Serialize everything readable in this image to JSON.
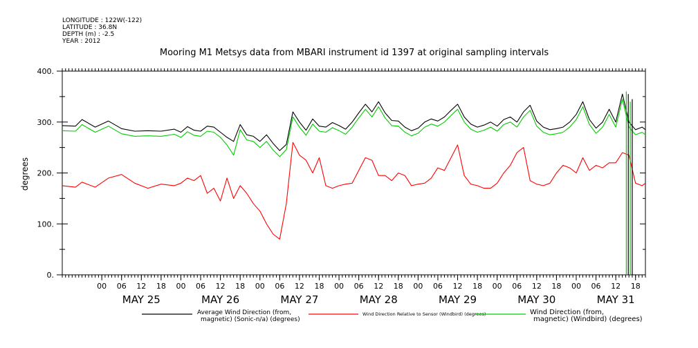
{
  "header": {
    "longitude": "LONGITUDE : 122W(-122)",
    "latitude": "LATITUDE : 36.8N",
    "depth": "DEPTH (m) : -2.5",
    "year": "YEAR : 2012"
  },
  "chart_data": {
    "type": "line",
    "title": "Mooring M1 Metsys data from MBARI instrument id 1397 at original sampling intervals",
    "ylabel": "degrees",
    "ylim": [
      0,
      400
    ],
    "y_ticks": [
      "0.",
      "100.",
      "200.",
      "300.",
      "400."
    ],
    "x_unit": "hours since May 24 12:00",
    "xlim": [
      0,
      177
    ],
    "x_hour_ticks": [
      {
        "x": 12,
        "label": "00"
      },
      {
        "x": 18,
        "label": "06"
      },
      {
        "x": 24,
        "label": "12"
      },
      {
        "x": 30,
        "label": "18"
      },
      {
        "x": 36,
        "label": "00"
      },
      {
        "x": 42,
        "label": "06"
      },
      {
        "x": 48,
        "label": "12"
      },
      {
        "x": 54,
        "label": "18"
      },
      {
        "x": 60,
        "label": "00"
      },
      {
        "x": 66,
        "label": "06"
      },
      {
        "x": 72,
        "label": "12"
      },
      {
        "x": 78,
        "label": "18"
      },
      {
        "x": 84,
        "label": "00"
      },
      {
        "x": 90,
        "label": "06"
      },
      {
        "x": 96,
        "label": "12"
      },
      {
        "x": 102,
        "label": "18"
      },
      {
        "x": 108,
        "label": "00"
      },
      {
        "x": 114,
        "label": "06"
      },
      {
        "x": 120,
        "label": "12"
      },
      {
        "x": 126,
        "label": "18"
      },
      {
        "x": 132,
        "label": "00"
      },
      {
        "x": 138,
        "label": "06"
      },
      {
        "x": 144,
        "label": "12"
      },
      {
        "x": 150,
        "label": "18"
      },
      {
        "x": 156,
        "label": "00"
      },
      {
        "x": 162,
        "label": "06"
      },
      {
        "x": 168,
        "label": "12"
      },
      {
        "x": 174,
        "label": "18"
      }
    ],
    "x_day_labels": [
      {
        "x": 24,
        "label": "MAY 25"
      },
      {
        "x": 48,
        "label": "MAY 26"
      },
      {
        "x": 72,
        "label": "MAY 27"
      },
      {
        "x": 96,
        "label": "MAY 28"
      },
      {
        "x": 120,
        "label": "MAY 29"
      },
      {
        "x": 144,
        "label": "MAY 30"
      },
      {
        "x": 168,
        "label": "MAY 31"
      }
    ],
    "series": [
      {
        "name": "Average Wind Direction (from, magnetic) (Sonic-n/a) (degrees)",
        "color": "#000000",
        "x": [
          0,
          4,
          6,
          10,
          14,
          18,
          22,
          26,
          30,
          34,
          36,
          38,
          40,
          42,
          44,
          46,
          48,
          50,
          52,
          54,
          56,
          58,
          60,
          62,
          64,
          66,
          68,
          70,
          72,
          74,
          76,
          78,
          80,
          82,
          84,
          86,
          88,
          90,
          92,
          94,
          96,
          98,
          100,
          102,
          104,
          106,
          108,
          110,
          112,
          114,
          116,
          118,
          120,
          122,
          124,
          126,
          128,
          130,
          132,
          134,
          136,
          138,
          140,
          142,
          144,
          146,
          148,
          150,
          152,
          154,
          156,
          158,
          160,
          162,
          164,
          166,
          168,
          170,
          172,
          174,
          176,
          177
        ],
        "y": [
          293,
          292,
          305,
          290,
          302,
          287,
          282,
          283,
          282,
          286,
          280,
          291,
          284,
          282,
          292,
          290,
          280,
          270,
          262,
          295,
          275,
          272,
          262,
          275,
          258,
          244,
          256,
          320,
          300,
          284,
          306,
          292,
          290,
          299,
          293,
          286,
          300,
          318,
          335,
          320,
          340,
          318,
          303,
          302,
          290,
          283,
          288,
          300,
          306,
          302,
          310,
          323,
          335,
          310,
          296,
          290,
          294,
          300,
          292,
          305,
          310,
          300,
          320,
          333,
          302,
          290,
          285,
          287,
          290,
          300,
          315,
          340,
          305,
          288,
          300,
          325,
          300,
          355,
          300,
          285,
          290,
          285
        ]
      },
      {
        "name": "Wind Direction Relative to Sensor (Windbird) (degrees)",
        "color": "#ff0000",
        "x": [
          0,
          4,
          6,
          10,
          14,
          18,
          22,
          26,
          30,
          34,
          36,
          38,
          40,
          42,
          44,
          46,
          48,
          50,
          52,
          54,
          56,
          58,
          60,
          62,
          64,
          66,
          68,
          70,
          72,
          74,
          76,
          78,
          80,
          82,
          84,
          86,
          88,
          90,
          92,
          94,
          96,
          98,
          100,
          102,
          104,
          106,
          108,
          110,
          112,
          114,
          116,
          118,
          120,
          122,
          124,
          126,
          128,
          130,
          132,
          134,
          136,
          138,
          140,
          142,
          144,
          146,
          148,
          150,
          152,
          154,
          156,
          158,
          160,
          162,
          164,
          166,
          168,
          170,
          172,
          174,
          176,
          177
        ],
        "y": [
          175,
          172,
          182,
          172,
          190,
          197,
          180,
          170,
          178,
          175,
          180,
          190,
          185,
          195,
          160,
          170,
          145,
          190,
          150,
          175,
          160,
          140,
          125,
          100,
          80,
          70,
          140,
          260,
          235,
          225,
          200,
          230,
          175,
          170,
          175,
          178,
          180,
          205,
          230,
          225,
          195,
          195,
          185,
          200,
          195,
          175,
          178,
          180,
          190,
          210,
          205,
          230,
          255,
          195,
          178,
          175,
          170,
          170,
          180,
          200,
          215,
          240,
          250,
          185,
          178,
          175,
          180,
          200,
          215,
          210,
          200,
          230,
          205,
          215,
          210,
          220,
          220,
          240,
          235,
          180,
          175,
          180
        ]
      },
      {
        "name": "Wind Direction (from, magnetic) (Windbird) (degrees)",
        "color": "#00cc00",
        "x": [
          0,
          4,
          6,
          10,
          14,
          18,
          22,
          26,
          30,
          34,
          36,
          38,
          40,
          42,
          44,
          46,
          48,
          50,
          52,
          54,
          56,
          58,
          60,
          62,
          64,
          66,
          68,
          70,
          72,
          74,
          76,
          78,
          80,
          82,
          84,
          86,
          88,
          90,
          92,
          94,
          96,
          98,
          100,
          102,
          104,
          106,
          108,
          110,
          112,
          114,
          116,
          118,
          120,
          122,
          124,
          126,
          128,
          130,
          132,
          134,
          136,
          138,
          140,
          142,
          144,
          146,
          148,
          150,
          152,
          154,
          156,
          158,
          160,
          162,
          164,
          166,
          168,
          170,
          172,
          174,
          176,
          177
        ],
        "y": [
          283,
          282,
          295,
          280,
          292,
          277,
          272,
          273,
          272,
          276,
          270,
          281,
          274,
          272,
          282,
          280,
          270,
          255,
          235,
          285,
          265,
          262,
          250,
          262,
          245,
          232,
          246,
          310,
          290,
          274,
          296,
          282,
          280,
          289,
          283,
          276,
          290,
          308,
          325,
          310,
          330,
          308,
          293,
          292,
          280,
          273,
          278,
          290,
          296,
          292,
          300,
          313,
          325,
          300,
          286,
          280,
          284,
          290,
          282,
          295,
          300,
          290,
          310,
          323,
          292,
          280,
          275,
          277,
          280,
          290,
          305,
          330,
          295,
          278,
          290,
          315,
          290,
          345,
          290,
          275,
          280,
          275
        ]
      }
    ],
    "spikes": [
      {
        "x": 171.2,
        "y0": 0,
        "y1": 360,
        "color": "#00cc00"
      },
      {
        "x": 171.8,
        "y0": 0,
        "y1": 355,
        "color": "#000000"
      },
      {
        "x": 172.4,
        "y0": 0,
        "y1": 340,
        "color": "#00cc00"
      },
      {
        "x": 173.0,
        "y0": 0,
        "y1": 345,
        "color": "#000000"
      }
    ]
  },
  "legend": [
    {
      "line1": "Average Wind Direction (from,",
      "line2": "magnetic) (Sonic-n/a) (degrees)",
      "color": "#000000"
    },
    {
      "line1": "Wind Direction Relative to Sensor (Windbird) (degrees)",
      "line2": "",
      "color": "#ff0000"
    },
    {
      "line1": "Wind Direction (from,",
      "line2": "magnetic) (Windbird) (degrees)",
      "color": "#00cc00"
    }
  ]
}
